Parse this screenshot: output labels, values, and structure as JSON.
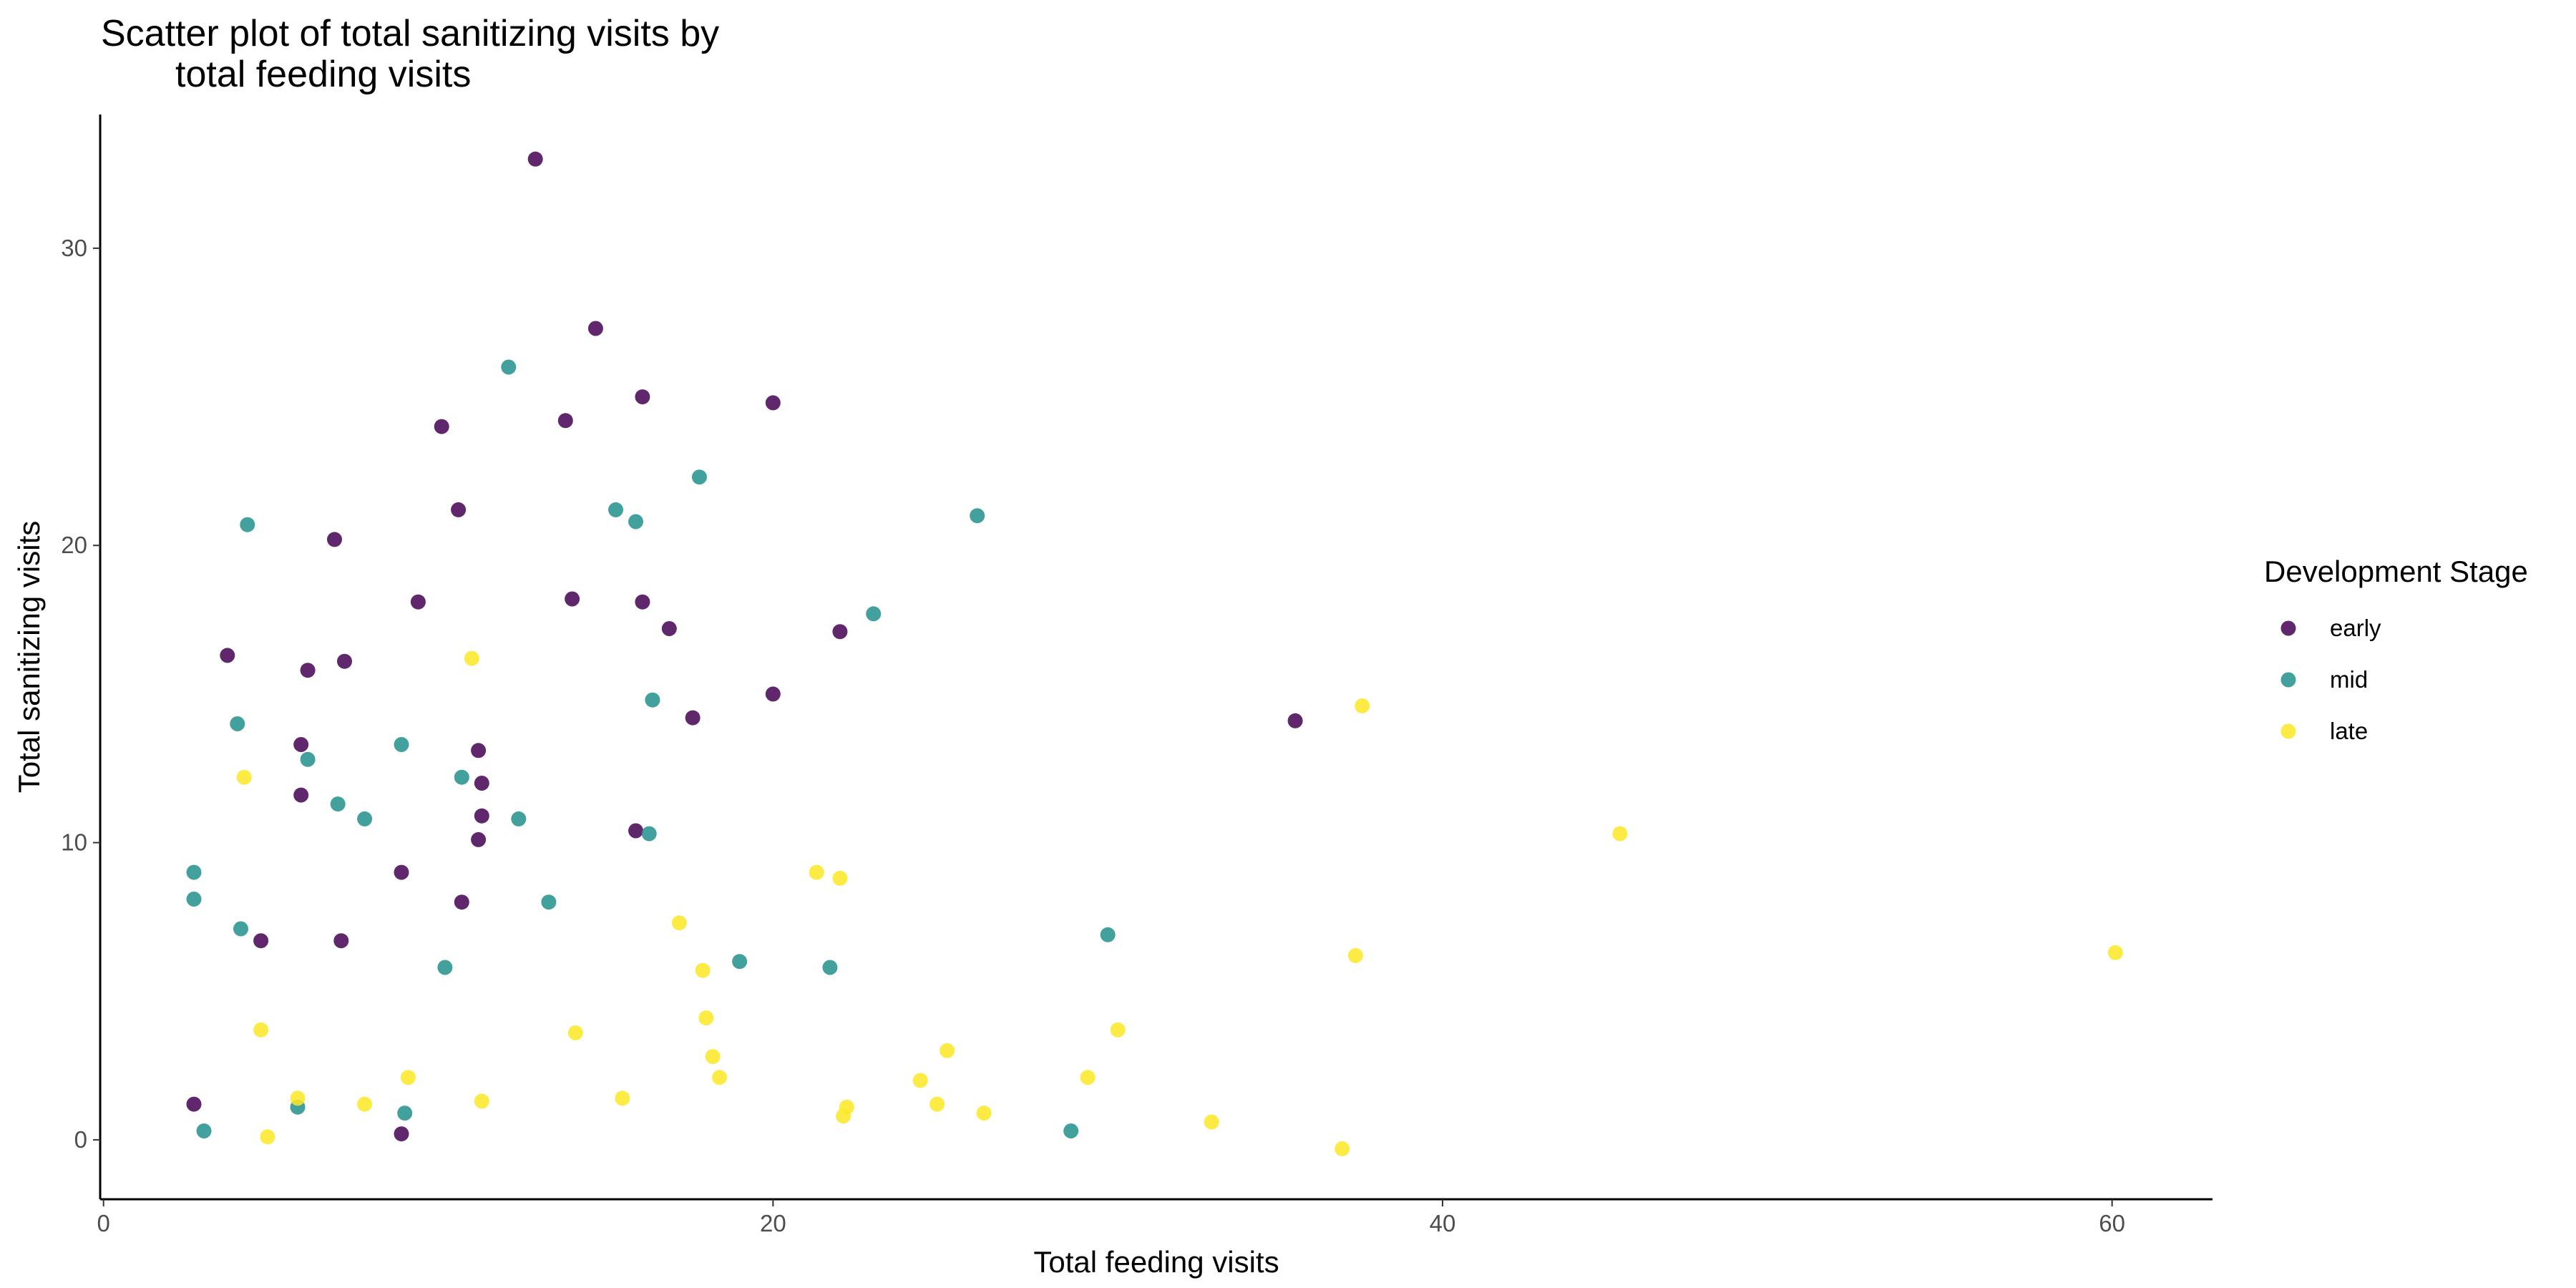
{
  "chart_data": {
    "type": "scatter",
    "title_lines": [
      "Scatter plot of total sanitizing visits by",
      "total feeding visits"
    ],
    "xlabel": "Total feeding visits",
    "ylabel": "Total sanitizing visits",
    "xlim": [
      -0.1,
      63
    ],
    "ylim": [
      -2,
      34.5
    ],
    "x_ticks": [
      0,
      20,
      40,
      60
    ],
    "y_ticks": [
      0,
      10,
      20,
      30
    ],
    "grid": false,
    "legend": {
      "title": "Development Stage",
      "position": "right"
    },
    "series": [
      {
        "name": "early",
        "color": "#440154",
        "points": [
          [
            12.9,
            33.0
          ],
          [
            14.7,
            27.3
          ],
          [
            16.1,
            25.0
          ],
          [
            20.0,
            24.8
          ],
          [
            10.1,
            24.0
          ],
          [
            13.8,
            24.2
          ],
          [
            10.6,
            21.2
          ],
          [
            6.9,
            20.2
          ],
          [
            9.4,
            18.1
          ],
          [
            14.0,
            18.2
          ],
          [
            16.1,
            18.1
          ],
          [
            3.7,
            16.3
          ],
          [
            6.1,
            15.8
          ],
          [
            7.2,
            16.1
          ],
          [
            16.9,
            17.2
          ],
          [
            22.0,
            17.1
          ],
          [
            20.0,
            15.0
          ],
          [
            17.6,
            14.2
          ],
          [
            35.6,
            14.1
          ],
          [
            5.9,
            13.3
          ],
          [
            11.2,
            13.1
          ],
          [
            11.3,
            12.0
          ],
          [
            5.9,
            11.6
          ],
          [
            11.3,
            10.9
          ],
          [
            11.2,
            10.1
          ],
          [
            15.9,
            10.4
          ],
          [
            8.9,
            9.0
          ],
          [
            10.7,
            8.0
          ],
          [
            4.7,
            6.7
          ],
          [
            7.1,
            6.7
          ],
          [
            2.7,
            1.2
          ],
          [
            8.9,
            0.2
          ]
        ]
      },
      {
        "name": "mid",
        "color": "#21908C",
        "points": [
          [
            12.1,
            26.0
          ],
          [
            17.8,
            22.3
          ],
          [
            15.3,
            21.2
          ],
          [
            4.3,
            20.7
          ],
          [
            15.9,
            20.8
          ],
          [
            26.1,
            21.0
          ],
          [
            23.0,
            17.7
          ],
          [
            16.4,
            14.8
          ],
          [
            4.0,
            14.0
          ],
          [
            8.9,
            13.3
          ],
          [
            6.1,
            12.8
          ],
          [
            10.7,
            12.2
          ],
          [
            7.0,
            11.3
          ],
          [
            7.8,
            10.8
          ],
          [
            12.4,
            10.8
          ],
          [
            16.3,
            10.3
          ],
          [
            2.7,
            9.0
          ],
          [
            2.7,
            8.1
          ],
          [
            13.3,
            8.0
          ],
          [
            4.1,
            7.1
          ],
          [
            30.0,
            6.9
          ],
          [
            19.0,
            6.0
          ],
          [
            10.2,
            5.8
          ],
          [
            21.7,
            5.8
          ],
          [
            3.0,
            0.3
          ],
          [
            5.8,
            1.1
          ],
          [
            9.0,
            0.9
          ],
          [
            28.9,
            0.3
          ]
        ]
      },
      {
        "name": "late",
        "color": "#FDE725",
        "points": [
          [
            37.6,
            14.6
          ],
          [
            11.0,
            16.2
          ],
          [
            4.2,
            12.2
          ],
          [
            45.3,
            10.3
          ],
          [
            21.3,
            9.0
          ],
          [
            22.0,
            8.8
          ],
          [
            17.2,
            7.3
          ],
          [
            37.4,
            6.2
          ],
          [
            60.1,
            6.3
          ],
          [
            17.9,
            5.7
          ],
          [
            18.0,
            4.1
          ],
          [
            4.7,
            3.7
          ],
          [
            14.1,
            3.6
          ],
          [
            30.3,
            3.7
          ],
          [
            25.2,
            3.0
          ],
          [
            18.2,
            2.8
          ],
          [
            18.4,
            2.1
          ],
          [
            24.4,
            2.0
          ],
          [
            29.4,
            2.1
          ],
          [
            9.1,
            2.1
          ],
          [
            5.8,
            1.4
          ],
          [
            7.8,
            1.2
          ],
          [
            11.3,
            1.3
          ],
          [
            15.5,
            1.4
          ],
          [
            22.2,
            1.1
          ],
          [
            24.9,
            1.2
          ],
          [
            22.1,
            0.8
          ],
          [
            26.3,
            0.9
          ],
          [
            33.1,
            0.6
          ],
          [
            4.9,
            0.1
          ],
          [
            37.0,
            -0.3
          ]
        ]
      }
    ]
  }
}
